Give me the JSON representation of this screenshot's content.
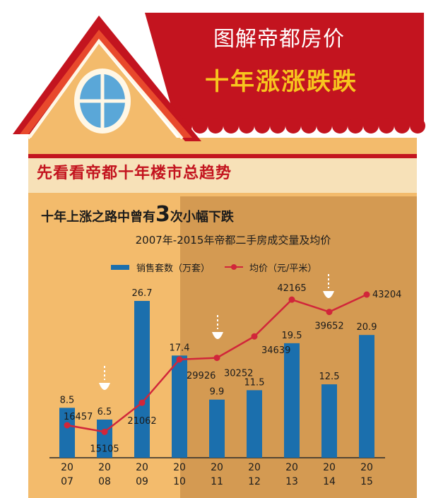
{
  "header": {
    "title": "图解帝都房价",
    "subtitle": "十年涨涨跌跌"
  },
  "banner": {
    "text": "先看看帝都十年楼市总趋势"
  },
  "headline": {
    "prefix": "十年上涨之路中曾有",
    "number": "3",
    "suffix": "次小幅下跌"
  },
  "colors": {
    "roof": "#c3141f",
    "wall": "#f3bb6c",
    "wall_shade": "#d59a50",
    "bar": "#1b6fad",
    "line": "#d1263a",
    "title_accent": "#f7c51e"
  },
  "chart_data": {
    "type": "bar",
    "title": "2007年-2015年帝都二手房成交量及均价",
    "categories": [
      "20\n07",
      "20\n08",
      "20\n09",
      "20\n10",
      "20\n11",
      "20\n12",
      "20\n13",
      "20\n14",
      "20\n15"
    ],
    "series": [
      {
        "name": "销售套数（万套）",
        "type": "bar",
        "values": [
          8.5,
          6.5,
          26.7,
          17.4,
          9.9,
          11.5,
          19.5,
          12.5,
          20.9
        ],
        "labels": [
          "8.5",
          "6.5",
          "26.7",
          "17.4",
          "9.9",
          "11.5",
          "19.5",
          "12.5",
          "20.9"
        ]
      },
      {
        "name": "均价（元/平米）",
        "type": "line",
        "values": [
          16457,
          15105,
          21062,
          29926,
          30252,
          34639,
          42165,
          39652,
          43204
        ],
        "labels": [
          "16457",
          "15105",
          "21062",
          "29926",
          "30252",
          "34639",
          "42165",
          "39652",
          "43204"
        ]
      }
    ],
    "legend": "top",
    "grid": false
  }
}
